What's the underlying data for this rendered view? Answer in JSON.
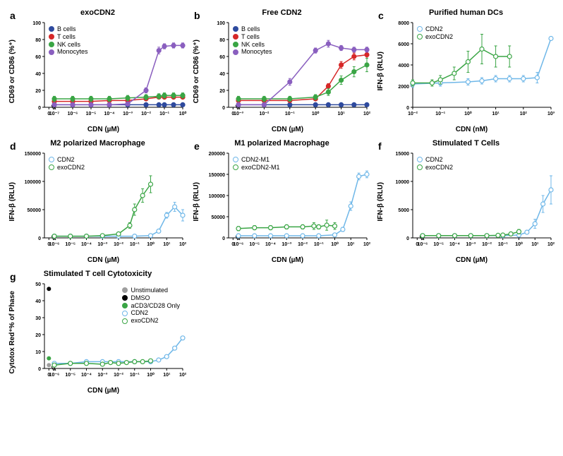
{
  "panels": {
    "a": {
      "label": "a",
      "title": "exoCDN2",
      "ylabel": "CD69 or CD86 (%⁺)",
      "xlabel": "CDN (µM)",
      "ylim": [
        0,
        100
      ],
      "ytick_step": 20,
      "xlog_ticks": [
        -7,
        -6,
        -5,
        -4,
        -3,
        -2,
        -1,
        0
      ],
      "x_has_zero": true,
      "fontsize_title": 11,
      "fontsize_axis": 10,
      "fontsize_tick": 7,
      "background_color": "#ffffff",
      "legend_pos": "inside-top-left",
      "series": [
        {
          "name": "B cells",
          "color": "#2e4a9e",
          "marker": "circle",
          "x": [
            -7,
            -6,
            -5,
            -4,
            -3,
            -2,
            -1.3,
            -1,
            -0.5,
            0
          ],
          "y": [
            3,
            3,
            3,
            3,
            3,
            3,
            3,
            3,
            3,
            3
          ],
          "err": [
            1,
            1,
            1,
            1,
            1,
            1,
            1,
            1,
            1,
            1
          ]
        },
        {
          "name": "T cells",
          "color": "#d62828",
          "marker": "circle",
          "x": [
            -7,
            -6,
            -5,
            -4,
            -3,
            -2,
            -1.3,
            -1,
            -0.5,
            0
          ],
          "y": [
            7,
            7,
            7,
            8,
            8,
            10,
            12,
            12,
            12,
            12
          ],
          "err": [
            2,
            2,
            2,
            2,
            2,
            2,
            2,
            2,
            2,
            2
          ]
        },
        {
          "name": "NK cells",
          "color": "#3aa545",
          "marker": "circle",
          "x": [
            -7,
            -6,
            -5,
            -4,
            -3,
            -2,
            -1.3,
            -1,
            -0.5,
            0
          ],
          "y": [
            10,
            10,
            10,
            10,
            11,
            12,
            13,
            14,
            14,
            14
          ],
          "err": [
            3,
            3,
            3,
            3,
            3,
            3,
            3,
            3,
            3,
            3
          ]
        },
        {
          "name": "Monocytes",
          "color": "#8a5fbf",
          "marker": "circle",
          "x": [
            -7,
            -6,
            -5,
            -4,
            -3,
            -2,
            -1.3,
            -1,
            -0.5,
            0
          ],
          "y": [
            3,
            3,
            3,
            3,
            4,
            20,
            67,
            72,
            73,
            73
          ],
          "err": [
            2,
            2,
            2,
            2,
            2,
            3,
            4,
            3,
            3,
            3
          ]
        }
      ]
    },
    "b": {
      "label": "b",
      "title": "Free CDN2",
      "ylabel": "CD69 or CD86 (%⁺)",
      "xlabel": "CDN (µM)",
      "ylim": [
        0,
        100
      ],
      "ytick_step": 20,
      "xlog_ticks": [
        -3,
        -2,
        -1,
        0,
        1,
        2
      ],
      "x_has_zero": true,
      "fontsize_title": 11,
      "fontsize_axis": 10,
      "fontsize_tick": 7,
      "background_color": "#ffffff",
      "legend_pos": "inside-top-left",
      "series": [
        {
          "name": "B cells",
          "color": "#2e4a9e",
          "marker": "circle",
          "x": [
            -3,
            -2,
            -1,
            0,
            0.5,
            1,
            1.5,
            2
          ],
          "y": [
            3,
            3,
            3,
            3,
            3,
            3,
            3,
            3
          ],
          "err": [
            1,
            1,
            1,
            1,
            1,
            1,
            1,
            1
          ]
        },
        {
          "name": "T cells",
          "color": "#d62828",
          "marker": "circle",
          "x": [
            -3,
            -2,
            -1,
            0,
            0.5,
            1,
            1.5,
            2
          ],
          "y": [
            8,
            8,
            8,
            10,
            25,
            50,
            60,
            62
          ],
          "err": [
            2,
            2,
            2,
            2,
            3,
            4,
            4,
            4
          ]
        },
        {
          "name": "NK cells",
          "color": "#3aa545",
          "marker": "circle",
          "x": [
            -3,
            -2,
            -1,
            0,
            0.5,
            1,
            1.5,
            2
          ],
          "y": [
            10,
            10,
            10,
            12,
            18,
            32,
            42,
            50
          ],
          "err": [
            3,
            3,
            3,
            3,
            4,
            5,
            6,
            8
          ]
        },
        {
          "name": "Monocytes",
          "color": "#8a5fbf",
          "marker": "circle",
          "x": [
            -3,
            -2,
            -1,
            0,
            0.5,
            1,
            1.5,
            2
          ],
          "y": [
            3,
            3,
            30,
            67,
            75,
            70,
            68,
            68
          ],
          "err": [
            2,
            2,
            4,
            3,
            4,
            3,
            3,
            3
          ]
        }
      ]
    },
    "c": {
      "label": "c",
      "title": "Purified human DCs",
      "ylabel": "IFN-β (RLU)",
      "xlabel": "CDN (nM)",
      "ylim": [
        0,
        8000
      ],
      "ytick_step": 2000,
      "xlog_ticks": [
        -2,
        -1,
        0,
        1,
        2,
        3
      ],
      "x_has_zero": false,
      "fontsize_title": 11,
      "fontsize_axis": 10,
      "fontsize_tick": 7,
      "background_color": "#ffffff",
      "legend_pos": "inside-top-left",
      "series": [
        {
          "name": "CDN2",
          "color": "#6fb7e8",
          "marker": "circle-open",
          "x": [
            -2,
            -1,
            0,
            0.5,
            1,
            1.5,
            2,
            2.5,
            3
          ],
          "y": [
            2200,
            2300,
            2400,
            2500,
            2700,
            2700,
            2700,
            2800,
            6500
          ],
          "err": [
            300,
            300,
            300,
            300,
            300,
            300,
            300,
            500,
            0
          ]
        },
        {
          "name": "exoCDN2",
          "color": "#3aa545",
          "marker": "circle-open",
          "x": [
            -2,
            -1.3,
            -1,
            -0.5,
            0,
            0.5,
            1,
            1.5
          ],
          "y": [
            2300,
            2300,
            2600,
            3200,
            4300,
            5500,
            4800,
            4800
          ],
          "err": [
            300,
            300,
            400,
            600,
            1000,
            1400,
            1000,
            1000
          ]
        }
      ]
    },
    "d": {
      "label": "d",
      "title": "M2 polarized Macrophage",
      "ylabel": "IFN-β (RLU)",
      "xlabel": "CDN (µM)",
      "ylim": [
        0,
        150000
      ],
      "ytick_step": 50000,
      "xlog_ticks": [
        -6,
        -5,
        -4,
        -3,
        -2,
        -1,
        0,
        1,
        2
      ],
      "x_has_zero": true,
      "fontsize_title": 11,
      "fontsize_axis": 10,
      "fontsize_tick": 7,
      "background_color": "#ffffff",
      "legend_pos": "inside-top-left",
      "series": [
        {
          "name": "CDN2",
          "color": "#6fb7e8",
          "marker": "circle-open",
          "x": [
            -6,
            -5,
            -4,
            -3,
            -2,
            -1,
            0,
            0.5,
            1,
            1.5,
            2
          ],
          "y": [
            3000,
            3000,
            3000,
            3000,
            3000,
            3000,
            4000,
            12000,
            40000,
            55000,
            40000
          ],
          "err": [
            2000,
            2000,
            2000,
            2000,
            2000,
            2000,
            2000,
            3000,
            5000,
            8000,
            10000
          ]
        },
        {
          "name": "exoCDN2",
          "color": "#3aa545",
          "marker": "circle-open",
          "x": [
            -6,
            -5,
            -4,
            -3,
            -2,
            -1.3,
            -1,
            -0.5,
            0
          ],
          "y": [
            3000,
            3000,
            3000,
            4000,
            7000,
            22000,
            50000,
            75000,
            95000
          ],
          "err": [
            2000,
            2000,
            2000,
            2000,
            3000,
            5000,
            10000,
            12000,
            15000
          ]
        }
      ]
    },
    "e": {
      "label": "e",
      "title": "M1 polarized Macrophage",
      "ylabel": "IFN-β (RLU)",
      "xlabel": "CDN (µM)",
      "ylim": [
        0,
        200000
      ],
      "ytick_step": 50000,
      "xlog_ticks": [
        -6,
        -5,
        -4,
        -3,
        -2,
        -1,
        0,
        1,
        2
      ],
      "x_has_zero": true,
      "fontsize_title": 11,
      "fontsize_axis": 10,
      "fontsize_tick": 7,
      "background_color": "#ffffff",
      "legend_pos": "inside-top-left",
      "series": [
        {
          "name": "CDN2-M1",
          "color": "#6fb7e8",
          "marker": "circle-open",
          "x": [
            -6,
            -5,
            -4,
            -3,
            -2,
            -1,
            0,
            0.5,
            1,
            1.5,
            2
          ],
          "y": [
            5000,
            5000,
            5000,
            5000,
            5000,
            5000,
            7000,
            20000,
            75000,
            145000,
            150000
          ],
          "err": [
            3000,
            3000,
            3000,
            3000,
            3000,
            3000,
            3000,
            5000,
            10000,
            8000,
            8000
          ]
        },
        {
          "name": "exoCDN2-M1",
          "color": "#3aa545",
          "marker": "circle-open",
          "x": [
            -6,
            -5,
            -4,
            -3,
            -2,
            -1.3,
            -1,
            -0.5,
            0
          ],
          "y": [
            22000,
            24000,
            24000,
            26000,
            26000,
            28000,
            26000,
            30000,
            28000
          ],
          "err": [
            5000,
            5000,
            5000,
            5000,
            5000,
            8000,
            5000,
            12000,
            8000
          ]
        }
      ]
    },
    "f": {
      "label": "f",
      "title": "Stimulated T Cells",
      "ylabel": "IFN-β (RLU)",
      "xlabel": "CDN (µM)",
      "ylim": [
        0,
        15000
      ],
      "ytick_step": 5000,
      "xlog_ticks": [
        -6,
        -5,
        -4,
        -3,
        -2,
        -1,
        0,
        1,
        2
      ],
      "x_has_zero": true,
      "fontsize_title": 11,
      "fontsize_axis": 10,
      "fontsize_tick": 7,
      "background_color": "#ffffff",
      "legend_pos": "inside-top-left",
      "series": [
        {
          "name": "CDN2",
          "color": "#6fb7e8",
          "marker": "circle-open",
          "x": [
            -6,
            -5,
            -4,
            -3,
            -2,
            -1,
            0,
            0.5,
            1,
            1.5,
            2
          ],
          "y": [
            400,
            400,
            400,
            400,
            400,
            400,
            500,
            1000,
            2500,
            6000,
            8500
          ],
          "err": [
            200,
            200,
            200,
            200,
            200,
            200,
            200,
            300,
            800,
            1500,
            2500
          ]
        },
        {
          "name": "exoCDN2",
          "color": "#3aa545",
          "marker": "circle-open",
          "x": [
            -6,
            -5,
            -4,
            -3,
            -2,
            -1.3,
            -1,
            -0.5,
            0
          ],
          "y": [
            400,
            400,
            400,
            400,
            400,
            450,
            500,
            700,
            1100
          ],
          "err": [
            200,
            200,
            200,
            200,
            200,
            200,
            200,
            300,
            400
          ]
        }
      ]
    },
    "g": {
      "label": "g",
      "title": "Stimulated T cell Cytotoxicity",
      "ylabel": "Cytotox Red⁺% of Phase",
      "xlabel": "CDN (µM)",
      "ylim": [
        0,
        50
      ],
      "ytick_step": 10,
      "xlog_ticks": [
        -6,
        -5,
        -4,
        -3,
        -2,
        -1,
        0,
        1,
        2
      ],
      "x_has_zero": true,
      "fontsize_title": 11,
      "fontsize_axis": 10,
      "fontsize_tick": 7,
      "background_color": "#ffffff",
      "legend_pos": "inside-top-right",
      "series_points": [
        {
          "name": "Unstimulated",
          "color": "#9e9e9e",
          "marker": "circle",
          "x_zero": true,
          "y": 2,
          "err": 0.5
        },
        {
          "name": "DMSO",
          "color": "#000000",
          "marker": "circle",
          "x_zero": true,
          "y": 47,
          "err": 0
        },
        {
          "name": "aCD3/CD28 Only",
          "color": "#3aa545",
          "marker": "circle",
          "x_zero": true,
          "y": 6,
          "err": 0.5
        }
      ],
      "series": [
        {
          "name": "CDN2",
          "color": "#6fb7e8",
          "marker": "circle-open",
          "x": [
            -6,
            -5,
            -4,
            -3,
            -2,
            -1,
            0,
            0.5,
            1,
            1.5,
            2
          ],
          "y": [
            3,
            3,
            4,
            4,
            4,
            4,
            4,
            5,
            7,
            12,
            18
          ],
          "err": [
            0.5,
            0.5,
            0.5,
            0.5,
            0.5,
            0.5,
            0.5,
            1,
            1,
            1,
            1
          ]
        },
        {
          "name": "exoCDN2",
          "color": "#3aa545",
          "marker": "circle-open",
          "x": [
            -6,
            -5,
            -4,
            -3,
            -2.5,
            -2,
            -1.5,
            -1,
            -0.5,
            0
          ],
          "y": [
            2,
            3,
            3,
            2.5,
            3.5,
            3,
            3.5,
            4,
            4,
            4.5
          ],
          "err": [
            0.5,
            0.5,
            0.5,
            0.5,
            0.5,
            0.5,
            0.5,
            0.5,
            0.5,
            0.5
          ]
        }
      ]
    }
  }
}
